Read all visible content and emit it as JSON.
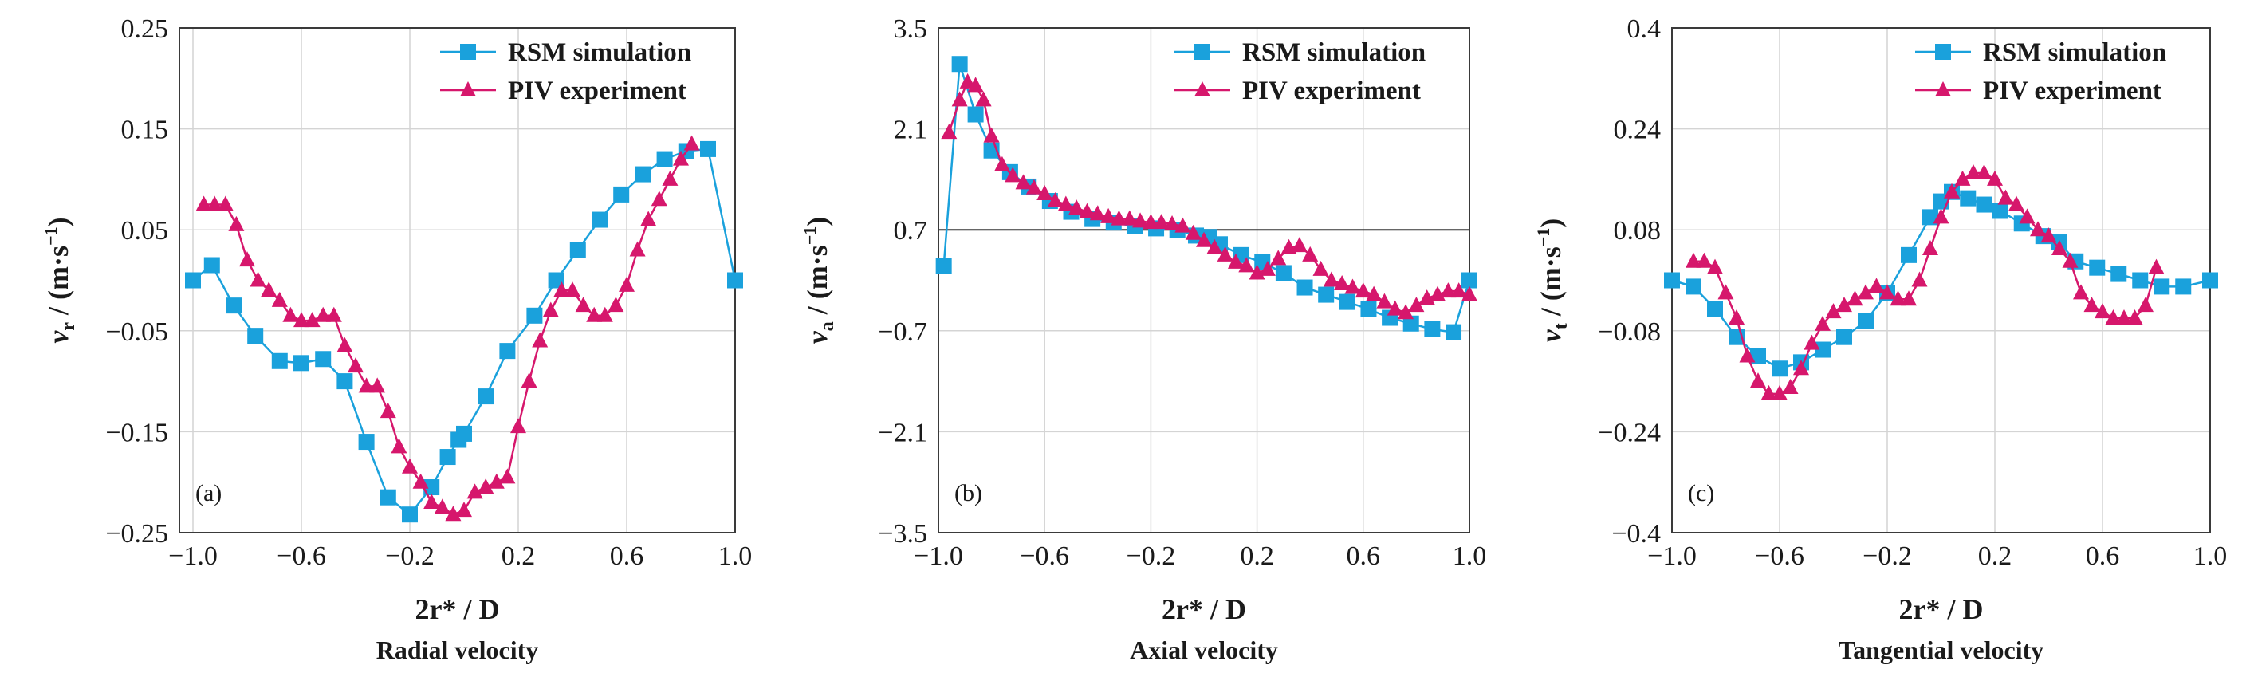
{
  "chart_data": [
    {
      "type": "line",
      "panel_label": "(a)",
      "caption": "Radial velocity",
      "xlabel": "2r* / D",
      "ylabel_symbol": "v",
      "ylabel_sub": "r",
      "ylabel_unit": "(m·s",
      "ylabel_exp": "−1",
      "ylabel_close": ")",
      "xlim": [
        -1.05,
        1.0
      ],
      "ylim": [
        -0.25,
        0.25
      ],
      "xticks": [
        -1.0,
        -0.6,
        -0.2,
        0.2,
        0.6,
        1.0
      ],
      "xtick_labels": [
        "−1.0",
        "−0.6",
        "−0.2",
        "0.2",
        "0.6",
        "1.0"
      ],
      "yticks": [
        -0.25,
        -0.15,
        -0.05,
        0.05,
        0.15,
        0.25
      ],
      "ytick_labels": [
        "−0.25",
        "−0.15",
        "−0.05",
        "0.05",
        "0.15",
        "0.25"
      ],
      "hline": null,
      "legend_position": "top-right",
      "series": [
        {
          "name": "RSM simulation",
          "color": "#1aa1dc",
          "marker": "square",
          "x": [
            -1.0,
            -0.93,
            -0.85,
            -0.77,
            -0.68,
            -0.6,
            -0.52,
            -0.44,
            -0.36,
            -0.28,
            -0.2,
            -0.12,
            -0.06,
            -0.02,
            0.0,
            0.08,
            0.16,
            0.26,
            0.34,
            0.42,
            0.5,
            0.58,
            0.66,
            0.74,
            0.82,
            0.9,
            1.0
          ],
          "y": [
            0.0,
            0.015,
            -0.025,
            -0.055,
            -0.08,
            -0.082,
            -0.078,
            -0.1,
            -0.16,
            -0.215,
            -0.232,
            -0.205,
            -0.175,
            -0.158,
            -0.152,
            -0.115,
            -0.07,
            -0.035,
            0.0,
            0.03,
            0.06,
            0.085,
            0.105,
            0.12,
            0.128,
            0.13,
            0.0
          ]
        },
        {
          "name": "PIV experiment",
          "color": "#d6176c",
          "marker": "triangle",
          "x": [
            -0.96,
            -0.92,
            -0.88,
            -0.84,
            -0.8,
            -0.76,
            -0.72,
            -0.68,
            -0.64,
            -0.6,
            -0.56,
            -0.52,
            -0.48,
            -0.44,
            -0.4,
            -0.36,
            -0.32,
            -0.28,
            -0.24,
            -0.2,
            -0.16,
            -0.12,
            -0.08,
            -0.04,
            0.0,
            0.04,
            0.08,
            0.12,
            0.16,
            0.2,
            0.24,
            0.28,
            0.32,
            0.36,
            0.4,
            0.44,
            0.48,
            0.52,
            0.56,
            0.6,
            0.64,
            0.68,
            0.72,
            0.76,
            0.8,
            0.84
          ],
          "y": [
            0.075,
            0.075,
            0.075,
            0.055,
            0.02,
            0.0,
            -0.01,
            -0.02,
            -0.035,
            -0.04,
            -0.04,
            -0.035,
            -0.035,
            -0.065,
            -0.085,
            -0.105,
            -0.105,
            -0.13,
            -0.165,
            -0.185,
            -0.2,
            -0.22,
            -0.225,
            -0.232,
            -0.228,
            -0.21,
            -0.205,
            -0.2,
            -0.195,
            -0.145,
            -0.1,
            -0.06,
            -0.03,
            -0.01,
            -0.01,
            -0.025,
            -0.035,
            -0.035,
            -0.025,
            -0.005,
            0.03,
            0.06,
            0.08,
            0.1,
            0.12,
            0.135
          ]
        }
      ]
    },
    {
      "type": "line",
      "panel_label": "(b)",
      "caption": "Axial velocity",
      "xlabel": "2r* / D",
      "ylabel_symbol": "v",
      "ylabel_sub": "a",
      "ylabel_unit": "(m·s",
      "ylabel_exp": "−1",
      "ylabel_close": ")",
      "xlim": [
        -1.0,
        1.0
      ],
      "ylim": [
        -3.5,
        3.5
      ],
      "xticks": [
        -1.0,
        -0.6,
        -0.2,
        0.2,
        0.6,
        1.0
      ],
      "xtick_labels": [
        "−1.0",
        "−0.6",
        "−0.2",
        "0.2",
        "0.6",
        "1.0"
      ],
      "yticks": [
        -3.5,
        -2.1,
        -0.7,
        0.7,
        2.1,
        3.5
      ],
      "ytick_labels": [
        "−3.5",
        "−2.1",
        "−0.7",
        "0.7",
        "2.1",
        "3.5"
      ],
      "hline": 0.7,
      "legend_position": "top-right",
      "series": [
        {
          "name": "RSM simulation",
          "color": "#1aa1dc",
          "marker": "square",
          "x": [
            -0.98,
            -0.92,
            -0.86,
            -0.8,
            -0.73,
            -0.66,
            -0.58,
            -0.5,
            -0.42,
            -0.34,
            -0.26,
            -0.18,
            -0.1,
            -0.03,
            0.02,
            0.06,
            0.14,
            0.22,
            0.3,
            0.38,
            0.46,
            0.54,
            0.62,
            0.7,
            0.78,
            0.86,
            0.94,
            1.0
          ],
          "y": [
            0.2,
            3.0,
            2.3,
            1.8,
            1.5,
            1.3,
            1.1,
            0.95,
            0.85,
            0.8,
            0.75,
            0.72,
            0.7,
            0.62,
            0.6,
            0.5,
            0.35,
            0.25,
            0.1,
            -0.1,
            -0.2,
            -0.3,
            -0.4,
            -0.52,
            -0.6,
            -0.68,
            -0.72,
            0.0
          ]
        },
        {
          "name": "PIV experiment",
          "color": "#d6176c",
          "marker": "triangle",
          "x": [
            -0.96,
            -0.92,
            -0.89,
            -0.86,
            -0.83,
            -0.8,
            -0.76,
            -0.72,
            -0.68,
            -0.64,
            -0.6,
            -0.56,
            -0.52,
            -0.48,
            -0.44,
            -0.4,
            -0.36,
            -0.32,
            -0.28,
            -0.24,
            -0.2,
            -0.16,
            -0.12,
            -0.08,
            -0.04,
            0.0,
            0.04,
            0.08,
            0.12,
            0.16,
            0.2,
            0.24,
            0.28,
            0.32,
            0.36,
            0.4,
            0.44,
            0.48,
            0.52,
            0.56,
            0.6,
            0.64,
            0.68,
            0.72,
            0.76,
            0.8,
            0.84,
            0.88,
            0.92,
            0.96,
            1.0
          ],
          "y": [
            2.05,
            2.5,
            2.75,
            2.7,
            2.5,
            2.0,
            1.6,
            1.45,
            1.35,
            1.28,
            1.2,
            1.1,
            1.05,
            1.0,
            0.95,
            0.92,
            0.88,
            0.85,
            0.85,
            0.82,
            0.8,
            0.8,
            0.78,
            0.75,
            0.65,
            0.55,
            0.45,
            0.35,
            0.25,
            0.2,
            0.1,
            0.15,
            0.3,
            0.45,
            0.48,
            0.35,
            0.15,
            0.0,
            -0.05,
            -0.1,
            -0.15,
            -0.2,
            -0.3,
            -0.4,
            -0.45,
            -0.35,
            -0.25,
            -0.2,
            -0.15,
            -0.15,
            -0.2
          ]
        }
      ]
    },
    {
      "type": "line",
      "panel_label": "(c)",
      "caption": "Tangential velocity",
      "xlabel": "2r* / D",
      "ylabel_symbol": "v",
      "ylabel_sub": "t",
      "ylabel_unit": "(m·s",
      "ylabel_exp": "−1",
      "ylabel_close": ")",
      "xlim": [
        -1.0,
        1.0
      ],
      "ylim": [
        -0.4,
        0.4
      ],
      "xticks": [
        -1.0,
        -0.6,
        -0.2,
        0.2,
        0.6,
        1.0
      ],
      "xtick_labels": [
        "−1.0",
        "−0.6",
        "−0.2",
        "0.2",
        "0.6",
        "1.0"
      ],
      "yticks": [
        -0.4,
        -0.24,
        -0.08,
        0.08,
        0.24,
        0.4
      ],
      "ytick_labels": [
        "−0.4",
        "−0.24",
        "−0.08",
        "0.08",
        "0.24",
        "0.4"
      ],
      "hline": null,
      "legend_position": "top-right",
      "series": [
        {
          "name": "RSM simulation",
          "color": "#1aa1dc",
          "marker": "square",
          "x": [
            -1.0,
            -0.92,
            -0.84,
            -0.76,
            -0.68,
            -0.6,
            -0.52,
            -0.44,
            -0.36,
            -0.28,
            -0.2,
            -0.12,
            -0.04,
            0.0,
            0.04,
            0.1,
            0.16,
            0.22,
            0.3,
            0.38,
            0.44,
            0.5,
            0.58,
            0.66,
            0.74,
            0.82,
            0.9,
            1.0
          ],
          "y": [
            0.0,
            -0.01,
            -0.045,
            -0.09,
            -0.12,
            -0.14,
            -0.13,
            -0.11,
            -0.09,
            -0.065,
            -0.02,
            0.04,
            0.1,
            0.125,
            0.14,
            0.13,
            0.12,
            0.11,
            0.09,
            0.07,
            0.06,
            0.03,
            0.02,
            0.01,
            0.0,
            -0.01,
            -0.01,
            0.0
          ]
        },
        {
          "name": "PIV experiment",
          "color": "#d6176c",
          "marker": "triangle",
          "x": [
            -0.92,
            -0.88,
            -0.84,
            -0.8,
            -0.76,
            -0.72,
            -0.68,
            -0.64,
            -0.6,
            -0.56,
            -0.52,
            -0.48,
            -0.44,
            -0.4,
            -0.36,
            -0.32,
            -0.28,
            -0.24,
            -0.2,
            -0.16,
            -0.12,
            -0.08,
            -0.04,
            0.0,
            0.04,
            0.08,
            0.12,
            0.16,
            0.2,
            0.24,
            0.28,
            0.32,
            0.36,
            0.4,
            0.44,
            0.48,
            0.52,
            0.56,
            0.6,
            0.64,
            0.68,
            0.72,
            0.76,
            0.8
          ],
          "y": [
            0.03,
            0.03,
            0.02,
            -0.02,
            -0.06,
            -0.12,
            -0.16,
            -0.18,
            -0.18,
            -0.17,
            -0.14,
            -0.1,
            -0.07,
            -0.05,
            -0.04,
            -0.03,
            -0.02,
            -0.01,
            -0.02,
            -0.03,
            -0.03,
            0.0,
            0.05,
            0.1,
            0.14,
            0.16,
            0.17,
            0.17,
            0.16,
            0.13,
            0.12,
            0.1,
            0.08,
            0.07,
            0.05,
            0.03,
            -0.02,
            -0.04,
            -0.05,
            -0.06,
            -0.06,
            -0.06,
            -0.04,
            0.02
          ]
        }
      ]
    }
  ]
}
